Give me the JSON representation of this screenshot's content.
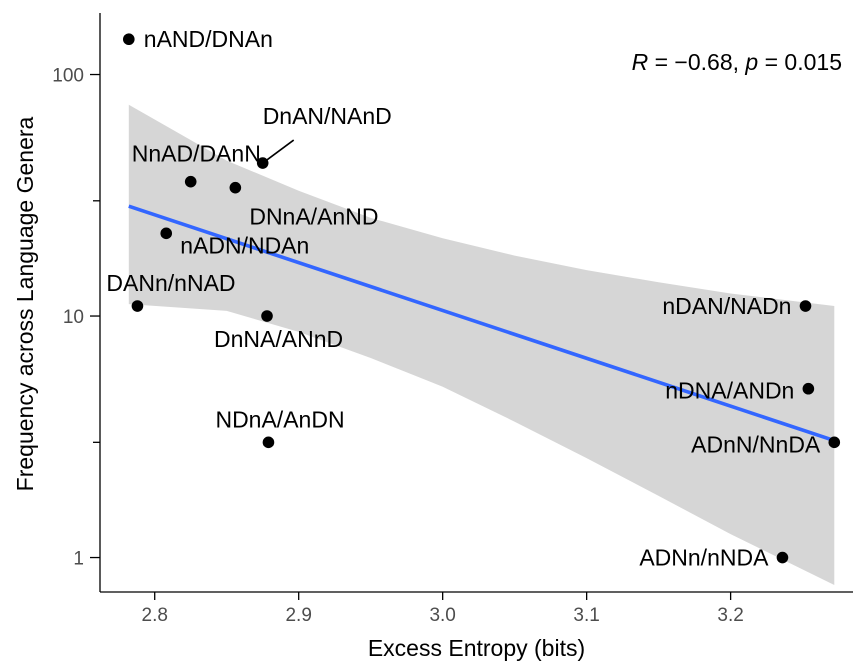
{
  "chart_data": {
    "type": "scatter",
    "xlabel": "Excess Entropy (bits)",
    "ylabel": "Frequency across Language Genera",
    "y_scale": "log10",
    "xlim": [
      2.762,
      3.285
    ],
    "ylim": [
      0.72,
      185
    ],
    "x_ticks": [
      2.8,
      2.9,
      3.0,
      3.1,
      3.2
    ],
    "x_tick_labels": [
      "2.8",
      "2.9",
      "3.0",
      "3.1",
      "3.2"
    ],
    "y_major_ticks": [
      1,
      10,
      100
    ],
    "y_major_tick_labels": [
      "1",
      "10",
      "100"
    ],
    "y_minor_ticks": [
      3,
      30
    ],
    "annotation": "R = −0.68, p = 0.015",
    "points": [
      {
        "label": "nAND/DNAn",
        "x": 2.782,
        "y": 140
      },
      {
        "label": "DnAN/NAnD",
        "x": 2.875,
        "y": 43
      },
      {
        "label": "NnAD/DAnN",
        "x": 2.825,
        "y": 36
      },
      {
        "label": "DNnA/AnND",
        "x": 2.856,
        "y": 34
      },
      {
        "label": "nADN/NDAn",
        "x": 2.808,
        "y": 22
      },
      {
        "label": "DANn/nNAD",
        "x": 2.788,
        "y": 11
      },
      {
        "label": "DnNA/ANnD",
        "x": 2.878,
        "y": 10
      },
      {
        "label": "NDnA/AnDN",
        "x": 2.879,
        "y": 3
      },
      {
        "label": "nDAN/NADn",
        "x": 3.252,
        "y": 11
      },
      {
        "label": "nDNA/ANDn",
        "x": 3.254,
        "y": 5
      },
      {
        "label": "ADnN/NnDA",
        "x": 3.272,
        "y": 3
      },
      {
        "label": "ADNn/nNDA",
        "x": 3.236,
        "y": 1
      }
    ],
    "fit_line": {
      "x": [
        2.782,
        3.272
      ],
      "y": [
        28.5,
        3.05
      ],
      "color": "#3366FF"
    },
    "confidence_band": {
      "x": [
        2.782,
        2.85,
        2.9,
        2.95,
        3.0,
        3.05,
        3.1,
        3.15,
        3.2,
        3.272
      ],
      "upper": [
        75,
        44,
        33,
        25.5,
        21,
        17.8,
        15.5,
        13.8,
        12.4,
        11
      ],
      "lower": [
        11.2,
        10.5,
        8.6,
        6.7,
        5.1,
        3.65,
        2.58,
        1.8,
        1.25,
        0.77
      ],
      "color": "#cccccc"
    }
  }
}
